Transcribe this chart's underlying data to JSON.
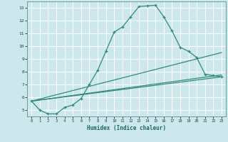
{
  "title": "",
  "xlabel": "Humidex (Indice chaleur)",
  "bg_color": "#cce8ec",
  "grid_color": "#ffffff",
  "line_color": "#2e8b7a",
  "x_ticks": [
    0,
    1,
    2,
    3,
    4,
    5,
    6,
    7,
    8,
    9,
    10,
    11,
    12,
    13,
    14,
    15,
    16,
    17,
    18,
    19,
    20,
    21,
    22,
    23
  ],
  "y_ticks": [
    5,
    6,
    7,
    8,
    9,
    10,
    11,
    12,
    13
  ],
  "ylim": [
    4.5,
    13.5
  ],
  "xlim": [
    -0.5,
    23.5
  ],
  "line1_x": [
    0,
    1,
    2,
    3,
    4,
    5,
    6,
    7,
    8,
    9,
    10,
    11,
    12,
    13,
    14,
    15,
    16,
    17,
    18,
    19,
    20,
    21,
    22,
    23
  ],
  "line1_y": [
    5.7,
    5.0,
    4.7,
    4.7,
    5.2,
    5.4,
    5.9,
    7.0,
    8.1,
    9.6,
    11.1,
    11.5,
    12.3,
    13.1,
    13.15,
    13.2,
    12.3,
    11.2,
    9.9,
    9.6,
    9.1,
    7.8,
    7.7,
    7.6
  ],
  "line2_x": [
    0,
    23
  ],
  "line2_y": [
    5.7,
    9.5
  ],
  "line3_x": [
    0,
    23
  ],
  "line3_y": [
    5.7,
    7.75
  ],
  "line4_x": [
    0,
    23
  ],
  "line4_y": [
    5.7,
    7.6
  ]
}
